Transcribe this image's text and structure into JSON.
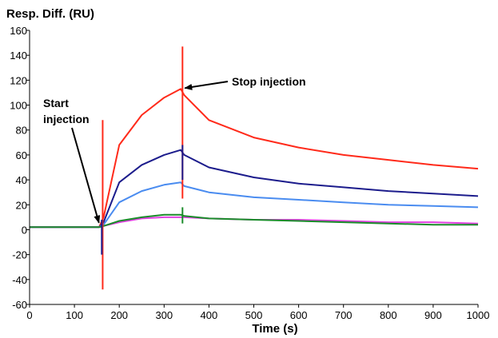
{
  "chart_data": {
    "type": "line",
    "title": "",
    "ylabel": "Resp. Diff. (RU)",
    "xlabel": "Time (s)",
    "xlim": [
      0,
      1000
    ],
    "ylim": [
      -60,
      160
    ],
    "xticks": [
      0,
      100,
      200,
      300,
      400,
      500,
      600,
      700,
      800,
      900,
      1000
    ],
    "yticks": [
      -60,
      -40,
      -20,
      0,
      20,
      40,
      60,
      80,
      100,
      120,
      140,
      160
    ],
    "grid": false,
    "legend": "none",
    "series": [
      {
        "color": "#ff2a1a",
        "x": [
          0,
          155,
          165,
          200,
          250,
          300,
          337,
          345,
          400,
          500,
          600,
          700,
          800,
          900,
          1000
        ],
        "y": [
          2,
          2,
          10,
          68,
          92,
          106,
          113,
          108,
          88,
          74,
          66,
          60,
          56,
          52,
          49
        ]
      },
      {
        "color": "#1c1c8c",
        "x": [
          0,
          155,
          165,
          200,
          250,
          300,
          337,
          345,
          400,
          500,
          600,
          700,
          800,
          900,
          1000
        ],
        "y": [
          2,
          2,
          6,
          38,
          52,
          60,
          64,
          60,
          50,
          42,
          37,
          34,
          31,
          29,
          27
        ]
      },
      {
        "color": "#4a8cf0",
        "x": [
          0,
          155,
          165,
          200,
          250,
          300,
          337,
          345,
          400,
          500,
          600,
          700,
          800,
          900,
          1000
        ],
        "y": [
          2,
          2,
          4,
          22,
          31,
          36,
          38,
          35,
          30,
          26,
          24,
          22,
          20,
          19,
          18
        ]
      },
      {
        "color": "#e040e0",
        "x": [
          0,
          155,
          165,
          200,
          250,
          300,
          337,
          345,
          400,
          500,
          600,
          700,
          800,
          900,
          1000
        ],
        "y": [
          2,
          2,
          3,
          6,
          9,
          10,
          10,
          10,
          9,
          8,
          8,
          7,
          6,
          6,
          5
        ]
      },
      {
        "color": "#1a8c2a",
        "x": [
          0,
          155,
          165,
          200,
          250,
          300,
          337,
          345,
          400,
          500,
          600,
          700,
          800,
          900,
          1000
        ],
        "y": [
          2,
          2,
          3,
          7,
          10,
          12,
          12,
          11,
          9,
          8,
          7,
          6,
          5,
          4,
          4
        ]
      }
    ],
    "spikes": [
      {
        "color": "#ff2a1a",
        "x": 163,
        "y_min": -48,
        "y_max": 88
      },
      {
        "color": "#1c1c8c",
        "x": 161,
        "y_min": -20,
        "y_max": 8
      },
      {
        "color": "#ff2a1a",
        "x": 341,
        "y_min": 25,
        "y_max": 147
      },
      {
        "color": "#1c1c8c",
        "x": 341,
        "y_min": 40,
        "y_max": 68
      },
      {
        "color": "#1a8c2a",
        "x": 341,
        "y_min": 5,
        "y_max": 18
      }
    ],
    "annotations": [
      {
        "text_lines": [
          "Start",
          "injection"
        ],
        "points_to": [
          160,
          3
        ]
      },
      {
        "text_lines": [
          "Stop injection"
        ],
        "points_to": [
          341,
          113
        ]
      }
    ]
  }
}
